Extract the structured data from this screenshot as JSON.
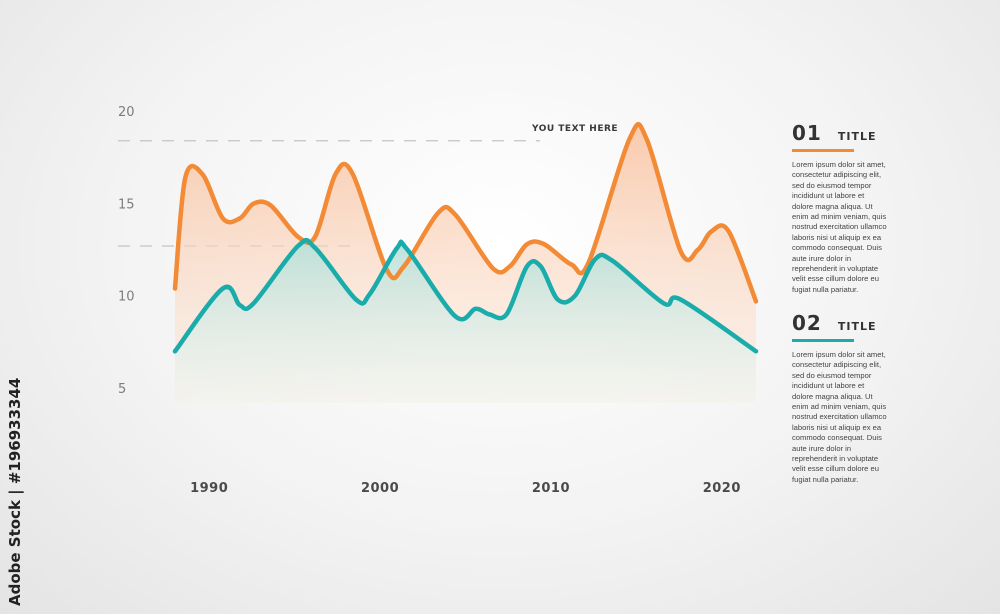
{
  "chart_data": {
    "type": "area",
    "y_ticks": [
      "20",
      "15",
      "10",
      "5"
    ],
    "x_ticks": [
      {
        "label": "1990",
        "year": 1990
      },
      {
        "label": "2000",
        "year": 2000
      },
      {
        "label": "2010",
        "year": 2010
      },
      {
        "label": "2020",
        "year": 2020
      }
    ],
    "ylim": [
      5,
      20
    ],
    "xlim": [
      1988,
      2022
    ],
    "annotation": {
      "label": "YOU TEXT HERE",
      "value": 19.2
    },
    "reference_line_value": 13.5,
    "series": [
      {
        "color": "#f28a36",
        "fill": "#f9c9a9",
        "points": [
          [
            1988,
            11.2
          ],
          [
            1988.6,
            17.2
          ],
          [
            1989.6,
            17.4
          ],
          [
            1990.8,
            15.0
          ],
          [
            1991.8,
            15.0
          ],
          [
            1992.6,
            15.8
          ],
          [
            1993.6,
            15.7
          ],
          [
            1995.2,
            14.0
          ],
          [
            1996.2,
            14.0
          ],
          [
            1997.4,
            17.4
          ],
          [
            1998.4,
            17.4
          ],
          [
            2000.4,
            12.2
          ],
          [
            2001.4,
            12.4
          ],
          [
            2003.4,
            15.3
          ],
          [
            2004.4,
            15.2
          ],
          [
            2006.6,
            12.3
          ],
          [
            2007.6,
            12.4
          ],
          [
            2008.6,
            13.6
          ],
          [
            2009.6,
            13.6
          ],
          [
            2011.2,
            12.5
          ],
          [
            2012.2,
            12.6
          ],
          [
            2014.6,
            19.3
          ],
          [
            2015.6,
            19.3
          ],
          [
            2017.6,
            13.2
          ],
          [
            2018.6,
            13.3
          ],
          [
            2019.4,
            14.3
          ],
          [
            2020.4,
            14.3
          ],
          [
            2022,
            10.5
          ]
        ]
      },
      {
        "color": "#1aabab",
        "fill": "#cfe9e3",
        "points": [
          [
            1988,
            7.8
          ],
          [
            1990.8,
            11.2
          ],
          [
            1991.8,
            10.3
          ],
          [
            1992.6,
            10.4
          ],
          [
            1995.2,
            13.5
          ],
          [
            1996.2,
            13.4
          ],
          [
            1998.6,
            10.6
          ],
          [
            1999.4,
            10.9
          ],
          [
            2001,
            13.4
          ],
          [
            2001.6,
            13.3
          ],
          [
            2004.4,
            9.7
          ],
          [
            2005.6,
            10.1
          ],
          [
            2006.4,
            9.8
          ],
          [
            2007.4,
            9.8
          ],
          [
            2008.6,
            12.4
          ],
          [
            2009.4,
            12.4
          ],
          [
            2010.4,
            10.6
          ],
          [
            2011.4,
            10.8
          ],
          [
            2012.6,
            12.8
          ],
          [
            2013.6,
            12.7
          ],
          [
            2016.6,
            10.4
          ],
          [
            2017.6,
            10.6
          ],
          [
            2022,
            7.8
          ]
        ]
      }
    ]
  },
  "legend_panels": [
    {
      "number": "01",
      "title": "TITLE",
      "color": "#f28a36",
      "lines": [
        "Lorem ipsum dolor sit amet,",
        "consectetur adipiscing elit,",
        "sed do eiusmod tempor",
        "incididunt ut labore et",
        "dolore magna aliqua. Ut",
        "enim ad minim veniam, quis",
        "nostrud exercitation ullamco",
        "laboris nisi ut aliquip ex ea",
        "commodo consequat. Duis",
        "aute irure dolor in",
        "reprehenderit in voluptate",
        "velit esse cillum dolore eu",
        "fugiat nulla pariatur."
      ]
    },
    {
      "number": "02",
      "title": "TITLE",
      "color": "#1aabab",
      "lines": [
        "Lorem ipsum dolor sit amet,",
        "consectetur adipiscing elit,",
        "sed do eiusmod tempor",
        "incididunt ut labore et",
        "dolore magna aliqua. Ut",
        "enim ad minim veniam, quis",
        "nostrud exercitation ullamco",
        "laboris nisi ut aliquip ex ea",
        "commodo consequat. Duis",
        "aute irure dolor in",
        "reprehenderit in voluptate",
        "velit esse cillum dolore eu",
        "fugiat nulla pariatur."
      ]
    }
  ],
  "stock_label": "Adobe Stock | #196933344"
}
